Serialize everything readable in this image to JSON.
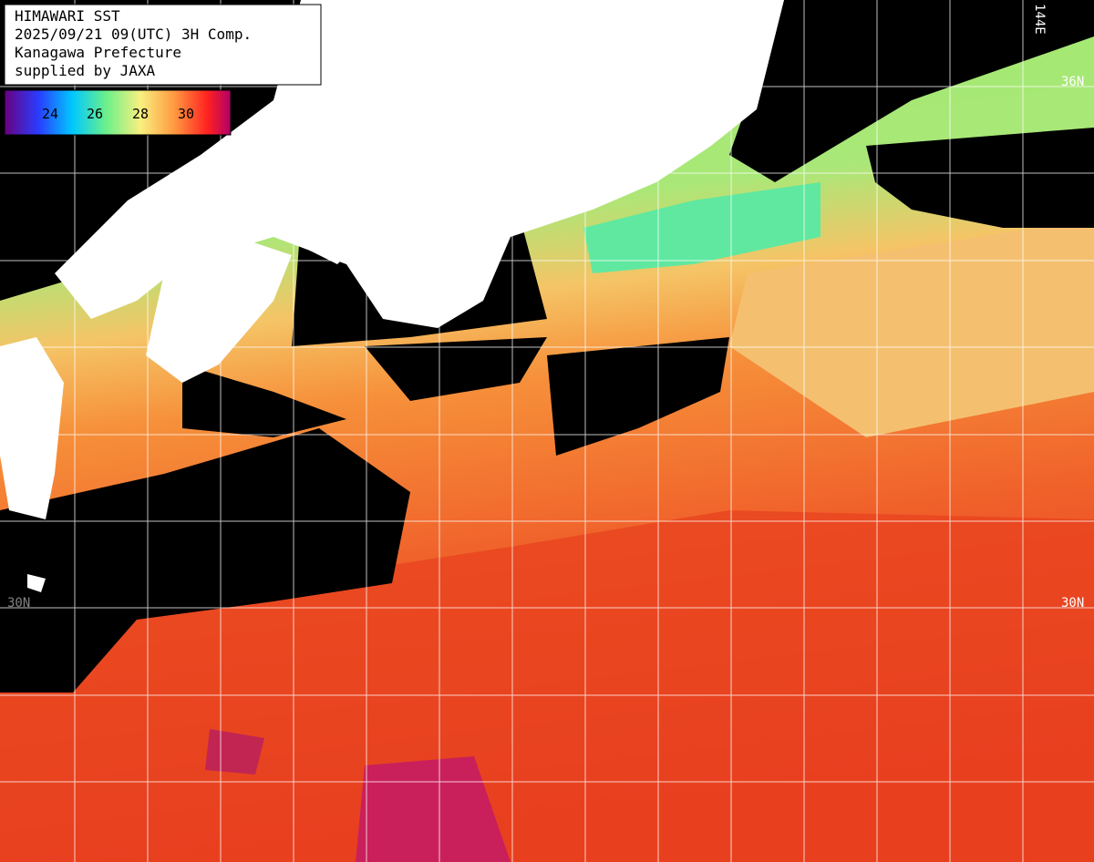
{
  "header": {
    "lines": [
      "HIMAWARI SST",
      "2025/09/21 09(UTC) 3H Comp.",
      "Kanagawa Prefecture",
      "supplied by JAXA"
    ]
  },
  "colorbar": {
    "labels": [
      "24",
      "26",
      "28",
      "30"
    ]
  },
  "grid_labels": {
    "longitude": "144E",
    "lat_north": "36N",
    "lat_south_right": "30N",
    "lat_south_left": "30N"
  }
}
